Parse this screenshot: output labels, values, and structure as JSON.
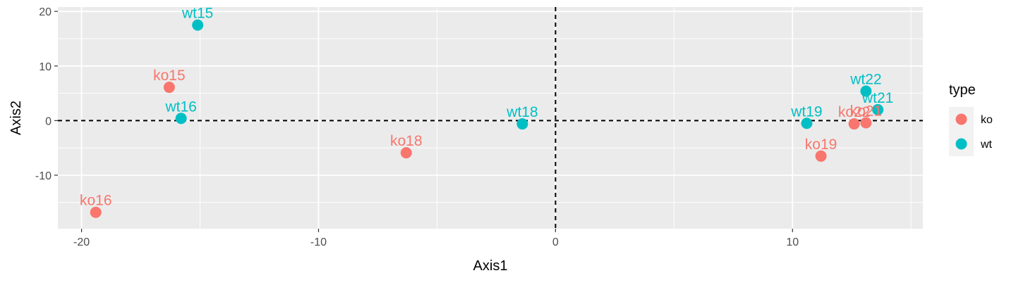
{
  "chart_data": {
    "type": "scatter",
    "title": "",
    "xlabel": "Axis1",
    "ylabel": "Axis2",
    "xlim": [
      -21,
      15.5
    ],
    "ylim": [
      -19.8,
      20.8
    ],
    "x_ticks": [
      -20,
      -10,
      0,
      10
    ],
    "x_tick_labels": [
      "-20",
      "-10",
      "0",
      "10"
    ],
    "y_ticks": [
      -10,
      0,
      10,
      20
    ],
    "y_tick_labels": [
      "-10",
      "0",
      "10",
      "20"
    ],
    "grid": true,
    "reference_lines": {
      "x": 0,
      "y": 0,
      "style": "dashed"
    },
    "legend": {
      "title": "type",
      "placement": "right",
      "entries": [
        {
          "name": "ko",
          "color": "#F8766D"
        },
        {
          "name": "wt",
          "color": "#00BFC4"
        }
      ]
    },
    "colors": {
      "panel_background": "#EBEBEB",
      "grid": "#FFFFFF",
      "ko": "#F8766D",
      "wt": "#00BFC4"
    },
    "points": [
      {
        "label": "wt15",
        "type": "wt",
        "x": -15.1,
        "y": 17.5
      },
      {
        "label": "ko15",
        "type": "ko",
        "x": -16.3,
        "y": 6.1
      },
      {
        "label": "wt16",
        "type": "wt",
        "x": -15.8,
        "y": 0.4
      },
      {
        "label": "ko16",
        "type": "ko",
        "x": -19.4,
        "y": -16.8
      },
      {
        "label": "ko18",
        "type": "ko",
        "x": -6.3,
        "y": -5.9
      },
      {
        "label": "wt18",
        "type": "wt",
        "x": -1.4,
        "y": -0.6
      },
      {
        "label": "wt19",
        "type": "wt",
        "x": 10.6,
        "y": -0.5
      },
      {
        "label": "ko19",
        "type": "ko",
        "x": 11.2,
        "y": -6.5
      },
      {
        "label": "ko22",
        "type": "ko",
        "x": 12.6,
        "y": -0.6
      },
      {
        "label": "ko21",
        "type": "ko",
        "x": 13.1,
        "y": -0.4
      },
      {
        "label": "wt22",
        "type": "wt",
        "x": 13.1,
        "y": 5.4
      },
      {
        "label": "wt21",
        "type": "wt",
        "x": 13.6,
        "y": 2.0
      }
    ]
  }
}
